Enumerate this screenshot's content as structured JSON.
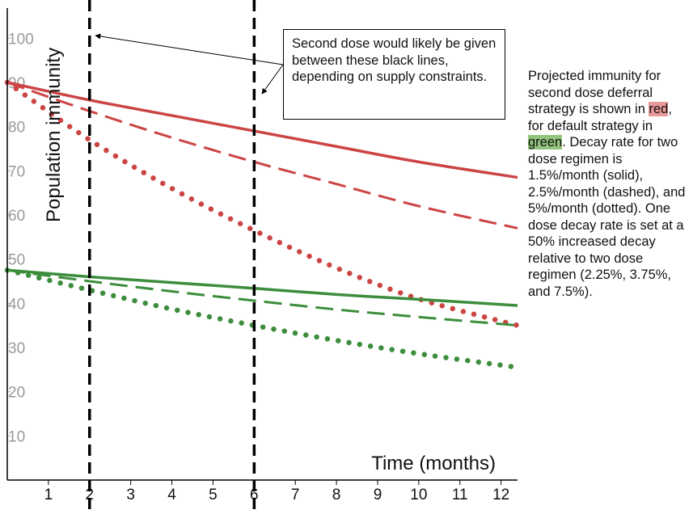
{
  "chart_data": {
    "type": "line",
    "xlabel": "Time (months)",
    "ylabel": "Population immunity",
    "xlim": [
      0,
      12.4
    ],
    "ylim": [
      0,
      107
    ],
    "x_ticks": [
      "1",
      "2",
      "3",
      "4",
      "5",
      "6",
      "7",
      "8",
      "9",
      "10",
      "11",
      "12"
    ],
    "y_ticks": [
      "10",
      "20",
      "30",
      "40",
      "50",
      "60",
      "70",
      "80",
      "90",
      "100"
    ],
    "grid": false,
    "legend": "none",
    "vertical_markers": [
      {
        "x": 2,
        "label": "2"
      },
      {
        "x": 6,
        "label": "6"
      }
    ],
    "series": [
      {
        "color": "#cc4444",
        "style": "solid",
        "x": [
          0,
          2,
          4,
          6,
          8,
          10,
          12.4
        ],
        "y": [
          90,
          86,
          82.5,
          79,
          75.5,
          72,
          68.5
        ]
      },
      {
        "color": "#cc4444",
        "style": "dashed",
        "x": [
          0,
          2,
          4,
          6,
          8,
          10,
          12.4
        ],
        "y": [
          90,
          83.5,
          77.5,
          72,
          67,
          62,
          57
        ]
      },
      {
        "color": "#cc4444",
        "style": "dotted",
        "x": [
          0,
          2,
          4,
          6,
          8,
          10,
          12.4
        ],
        "y": [
          90,
          77,
          66,
          56.5,
          48,
          41,
          35
        ]
      },
      {
        "color": "#3c8d3c",
        "style": "solid",
        "x": [
          0,
          2,
          4,
          6,
          8,
          10,
          12.4
        ],
        "y": [
          47.5,
          46,
          44.7,
          43.4,
          42,
          40.9,
          39.5
        ]
      },
      {
        "color": "#3c8d3c",
        "style": "dashed",
        "x": [
          0,
          2,
          4,
          6,
          8,
          10,
          12.4
        ],
        "y": [
          47.5,
          45,
          42.7,
          40.6,
          38.6,
          36.9,
          35
        ]
      },
      {
        "color": "#3c8d3c",
        "style": "dotted",
        "x": [
          0,
          2,
          4,
          6,
          8,
          10,
          12.4
        ],
        "y": [
          47.5,
          43,
          38.7,
          35,
          31.6,
          28.6,
          25.5
        ]
      }
    ]
  },
  "annotation": {
    "text": "Second dose would likely be given between these black lines, depending on supply constraints."
  },
  "side_text": {
    "part1": "Projected immunity for second dose deferral strategy is shown in ",
    "red_word": "red",
    "part2": ", for default strategy in ",
    "green_word": "green",
    "part3": ".  Decay rate for two dose regimen is 1.5%/month (solid), 2.5%/month (dashed), and 5%/month (dotted). One dose decay rate is set at a 50% increased decay relative to two dose regimen (2.25%, 3.75%, and 7.5%)."
  },
  "colors": {
    "red": "#cc4444",
    "green": "#3c8d3c",
    "red_highlight": "#ea9999",
    "green_highlight": "#93c47d",
    "tick_label": "#9a9a9a"
  }
}
